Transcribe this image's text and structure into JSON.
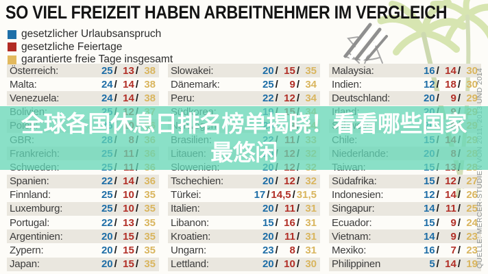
{
  "title": "SO VIEL FREIZEIT HABEN ARBEITNEHMER IM VERGLEICH",
  "legend": {
    "items": [
      {
        "label": "gesetzlicher Urlaubsanspruch",
        "color": "#1e6fa8"
      },
      {
        "label": "gesetzliche Feiertage",
        "color": "#b22b24"
      },
      {
        "label": "garantierte freie Tage insgesamt",
        "color": "#e2b95e"
      }
    ]
  },
  "overlay": {
    "line1": "全球各国休息日排名榜单揭晓！看看哪些国家",
    "line2": "最悠闲",
    "band_color": "#63d7b7",
    "text_color": "#ffffff"
  },
  "source": {
    "text": "QUELLE: MERCER-STUDIEN VON 2011, 2013 UND 2014"
  },
  "value_colors": {
    "urlaub": "#1d6da6",
    "feiertage": "#b12e26",
    "gesamt": "#d9b55e"
  },
  "table": {
    "columns": [
      {
        "rows": [
          {
            "label": "Österreich:",
            "values": [
              "25",
              "13",
              "38"
            ]
          },
          {
            "label": "Malta:",
            "values": [
              "24",
              "14",
              "38"
            ]
          },
          {
            "label": "Venezuela:",
            "values": [
              "24",
              "14",
              "38"
            ]
          },
          {
            "label": "Bolivien:",
            "values": [
              "25",
              "12",
              "37"
            ]
          },
          {
            "label": "Polen:",
            "values": [
              "26",
              "10",
              "36"
            ],
            "obscured_by_overlay": true
          },
          {
            "label": "GBR:",
            "values": [
              "28",
              "8",
              "36"
            ]
          },
          {
            "label": "Frankreich:",
            "values": [
              "25",
              "11",
              "36"
            ]
          },
          {
            "label": "Schweden:",
            "values": [
              "25",
              "11",
              "36"
            ]
          },
          {
            "label": "Spanien:",
            "values": [
              "22",
              "14",
              "36"
            ]
          },
          {
            "label": "Finnland:",
            "values": [
              "25",
              "10",
              "35"
            ]
          },
          {
            "label": "Luxemburg:",
            "values": [
              "25",
              "10",
              "35"
            ]
          },
          {
            "label": "Portugal:",
            "values": [
              "22",
              "13",
              "35"
            ]
          },
          {
            "label": "Argentinien:",
            "values": [
              "20",
              "15",
              "35"
            ]
          },
          {
            "label": "Zypern:",
            "values": [
              "20",
              "15",
              "35"
            ]
          },
          {
            "label": "Japan:",
            "values": [
              "20",
              "15",
              "35"
            ]
          }
        ]
      },
      {
        "rows": [
          {
            "label": "Slowakei:",
            "values": [
              "20",
              "15",
              "35"
            ]
          },
          {
            "label": "Dänemark:",
            "values": [
              "25",
              "9",
              "34"
            ]
          },
          {
            "label": "Peru:",
            "values": [
              "22",
              "12",
              "34"
            ]
          },
          {
            "label": "Südkorea:",
            "values": [
              "19",
              "15",
              "34"
            ]
          },
          {
            "label": "Norwegen:",
            "values": [
              "25",
              "9",
              "34"
            ],
            "obscured_by_overlay": true
          },
          {
            "label": "Brasilien:",
            "values": [
              "22",
              "11",
              "33"
            ]
          },
          {
            "label": "Litauen:",
            "values": [
              "20",
              "12",
              "32"
            ]
          },
          {
            "label": "Slowenien:",
            "values": [
              "20",
              "12",
              "32"
            ]
          },
          {
            "label": "Tschechien:",
            "values": [
              "20",
              "12",
              "32"
            ]
          },
          {
            "label": "Türkei:",
            "values": [
              "17",
              "14,5",
              "31,5"
            ]
          },
          {
            "label": "Italien:",
            "values": [
              "20",
              "11",
              "31"
            ]
          },
          {
            "label": "Libanon:",
            "values": [
              "15",
              "16",
              "31"
            ]
          },
          {
            "label": "Kroatien:",
            "values": [
              "20",
              "11",
              "31"
            ]
          },
          {
            "label": "Ungarn:",
            "values": [
              "23",
              "8",
              "31"
            ]
          },
          {
            "label": "Lettland:",
            "values": [
              "20",
              "10",
              "30"
            ]
          }
        ]
      },
      {
        "rows": [
          {
            "label": "Malaysia:",
            "values": [
              "16",
              "14",
              "30"
            ]
          },
          {
            "label": "Indien:",
            "values": [
              "12",
              "18",
              "30"
            ]
          },
          {
            "label": "Deutschland:",
            "values": [
              "20",
              "9",
              "29"
            ]
          },
          {
            "label": "Irland:",
            "values": [
              "20",
              "9",
              "29"
            ]
          },
          {
            "label": "Schweiz:",
            "values": [
              "20",
              "9",
              "29"
            ],
            "obscured_by_overlay": true
          },
          {
            "label": "Chile:",
            "values": [
              "15",
              "14",
              "29"
            ]
          },
          {
            "label": "Niederlande:",
            "values": [
              "20",
              "8",
              "28"
            ]
          },
          {
            "label": "Taiwan:",
            "values": [
              "15",
              "13",
              "28"
            ]
          },
          {
            "label": "Südafrika:",
            "values": [
              "15",
              "12",
              "27"
            ]
          },
          {
            "label": "Indonesien:",
            "values": [
              "12",
              "14",
              "26"
            ]
          },
          {
            "label": "Singapur:",
            "values": [
              "14",
              "11",
              "25"
            ]
          },
          {
            "label": "Ecuador:",
            "values": [
              "15",
              "9",
              "24"
            ]
          },
          {
            "label": "Vietnam:",
            "values": [
              "14",
              "9",
              "23"
            ]
          },
          {
            "label": "Mexiko:",
            "values": [
              "16",
              "7",
              "23"
            ]
          },
          {
            "label": "Philippinen",
            "values": [
              "5",
              "14",
              "19"
            ]
          }
        ]
      }
    ]
  },
  "chart_data": {
    "type": "table",
    "title": "SO VIEL FREIZEIT HABEN ARBEITNEHMER IM VERGLEICH",
    "columns": [
      "Land",
      "gesetzlicher Urlaubsanspruch",
      "gesetzliche Feiertage",
      "garantierte freie Tage insgesamt"
    ],
    "rows": [
      [
        "Österreich",
        25,
        13,
        38
      ],
      [
        "Malta",
        24,
        14,
        38
      ],
      [
        "Venezuela",
        24,
        14,
        38
      ],
      [
        "Bolivien",
        25,
        12,
        37
      ],
      [
        "Polen",
        26,
        10,
        36
      ],
      [
        "GBR",
        28,
        8,
        36
      ],
      [
        "Frankreich",
        25,
        11,
        36
      ],
      [
        "Schweden",
        25,
        11,
        36
      ],
      [
        "Spanien",
        22,
        14,
        36
      ],
      [
        "Finnland",
        25,
        10,
        35
      ],
      [
        "Luxemburg",
        25,
        10,
        35
      ],
      [
        "Portugal",
        22,
        13,
        35
      ],
      [
        "Argentinien",
        20,
        15,
        35
      ],
      [
        "Zypern",
        20,
        15,
        35
      ],
      [
        "Japan",
        20,
        15,
        35
      ],
      [
        "Slowakei",
        20,
        15,
        35
      ],
      [
        "Dänemark",
        25,
        9,
        34
      ],
      [
        "Peru",
        22,
        12,
        34
      ],
      [
        "Südkorea",
        19,
        15,
        34
      ],
      [
        "Norwegen",
        25,
        9,
        34
      ],
      [
        "Brasilien",
        22,
        11,
        33
      ],
      [
        "Litauen",
        20,
        12,
        32
      ],
      [
        "Slowenien",
        20,
        12,
        32
      ],
      [
        "Tschechien",
        20,
        12,
        32
      ],
      [
        "Türkei",
        17,
        14.5,
        31.5
      ],
      [
        "Italien",
        20,
        11,
        31
      ],
      [
        "Libanon",
        15,
        16,
        31
      ],
      [
        "Kroatien",
        20,
        11,
        31
      ],
      [
        "Ungarn",
        23,
        8,
        31
      ],
      [
        "Lettland",
        20,
        10,
        30
      ],
      [
        "Malaysia",
        16,
        14,
        30
      ],
      [
        "Indien",
        12,
        18,
        30
      ],
      [
        "Deutschland",
        20,
        9,
        29
      ],
      [
        "Irland",
        20,
        9,
        29
      ],
      [
        "Schweiz",
        20,
        9,
        29
      ],
      [
        "Chile",
        15,
        14,
        29
      ],
      [
        "Niederlande",
        20,
        8,
        28
      ],
      [
        "Taiwan",
        15,
        13,
        28
      ],
      [
        "Südafrika",
        15,
        12,
        27
      ],
      [
        "Indonesien",
        12,
        14,
        26
      ],
      [
        "Singapur",
        14,
        11,
        25
      ],
      [
        "Ecuador",
        15,
        9,
        24
      ],
      [
        "Vietnam",
        14,
        9,
        23
      ],
      [
        "Mexiko",
        16,
        7,
        23
      ],
      [
        "Philippinen",
        5,
        14,
        19
      ]
    ],
    "legend_position": "top-left",
    "notes": "Teal overlay band with Chinese headline covers rows at y≈155-248"
  }
}
